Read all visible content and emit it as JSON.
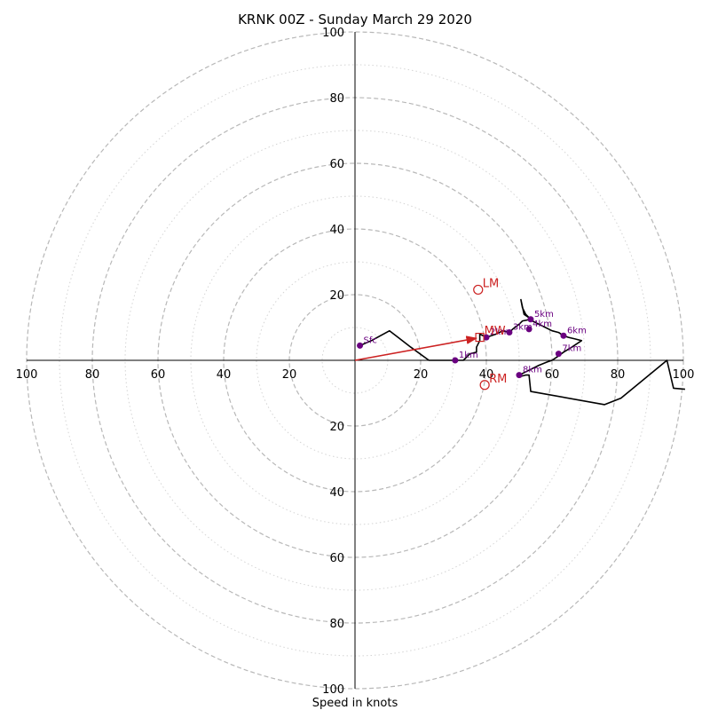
{
  "chart_data": {
    "type": "hodograph",
    "title": "KRNK 00Z - Sunday March 29 2020",
    "xlabel": "Speed in knots",
    "units": "knots",
    "range": [
      -100,
      100
    ],
    "ring_major": [
      20,
      40,
      60,
      80,
      100
    ],
    "ring_minor": [
      10,
      30,
      50,
      70,
      90
    ],
    "grid": true,
    "tick_labels_x": [
      "100",
      "80",
      "60",
      "40",
      "20",
      "20",
      "40",
      "60",
      "80",
      "100"
    ],
    "tick_labels_y": [
      "100",
      "80",
      "60",
      "40",
      "20",
      "20",
      "40",
      "60",
      "80",
      "100"
    ],
    "colors": {
      "trace": "#000000",
      "height_marker": "#6a0080",
      "storm_motion": "#cc2222",
      "major_grid": "#b8b8b8",
      "minor_grid": "#d4d4d4"
    },
    "hodograph_trace": [
      [
        1.5,
        4.5
      ],
      [
        5,
        6
      ],
      [
        10.5,
        9
      ],
      [
        17,
        4
      ],
      [
        22.5,
        0
      ],
      [
        30.5,
        0
      ],
      [
        33,
        0
      ],
      [
        35,
        2
      ],
      [
        37,
        2.5
      ],
      [
        37,
        4
      ],
      [
        38,
        6
      ],
      [
        38,
        8
      ],
      [
        40,
        7
      ],
      [
        43,
        8
      ],
      [
        45,
        9
      ],
      [
        47,
        8.5
      ],
      [
        48,
        9.5
      ],
      [
        50,
        11
      ],
      [
        51,
        12
      ],
      [
        53.5,
        12.5
      ],
      [
        52,
        14
      ],
      [
        51,
        16
      ],
      [
        50.5,
        18.5
      ],
      [
        51.5,
        14
      ],
      [
        53,
        13
      ],
      [
        54,
        12
      ],
      [
        56,
        11
      ],
      [
        58,
        10
      ],
      [
        60,
        9
      ],
      [
        62,
        8.5
      ],
      [
        63.5,
        7.5
      ],
      [
        65,
        7
      ],
      [
        67,
        6.5
      ],
      [
        69,
        6
      ],
      [
        66,
        4
      ],
      [
        63.5,
        2.5
      ],
      [
        61.5,
        1
      ],
      [
        60,
        0
      ],
      [
        58.5,
        -0.5
      ],
      [
        56,
        -1.5
      ],
      [
        54,
        -2.5
      ],
      [
        51,
        -4
      ],
      [
        50,
        -5
      ],
      [
        52,
        -4.5
      ],
      [
        53,
        -4.5
      ],
      [
        53.5,
        -9.5
      ],
      [
        76,
        -13.5
      ],
      [
        81,
        -11.5
      ],
      [
        95,
        0
      ],
      [
        97,
        -8.5
      ],
      [
        100.5,
        -8.8
      ]
    ],
    "height_markers": [
      {
        "label": "Sfc",
        "u": 1.5,
        "v": 4.5
      },
      {
        "label": "1km",
        "u": 30.5,
        "v": 0
      },
      {
        "label": "2km",
        "u": 40,
        "v": 7
      },
      {
        "label": "3km",
        "u": 47,
        "v": 8.5
      },
      {
        "label": "4km",
        "u": 53,
        "v": 9.5
      },
      {
        "label": "5km",
        "u": 53.5,
        "v": 12.5
      },
      {
        "label": "6km",
        "u": 63.5,
        "v": 7.5
      },
      {
        "label": "7km",
        "u": 62,
        "v": 2
      },
      {
        "label": "8km",
        "u": 50,
        "v": -4.5
      }
    ],
    "storm_motion": [
      {
        "label": "LM",
        "u": 37.5,
        "v": 21.5
      },
      {
        "label": "MW",
        "u": 38,
        "v": 7
      },
      {
        "label": "RM",
        "u": 39.5,
        "v": -7.5
      }
    ]
  }
}
